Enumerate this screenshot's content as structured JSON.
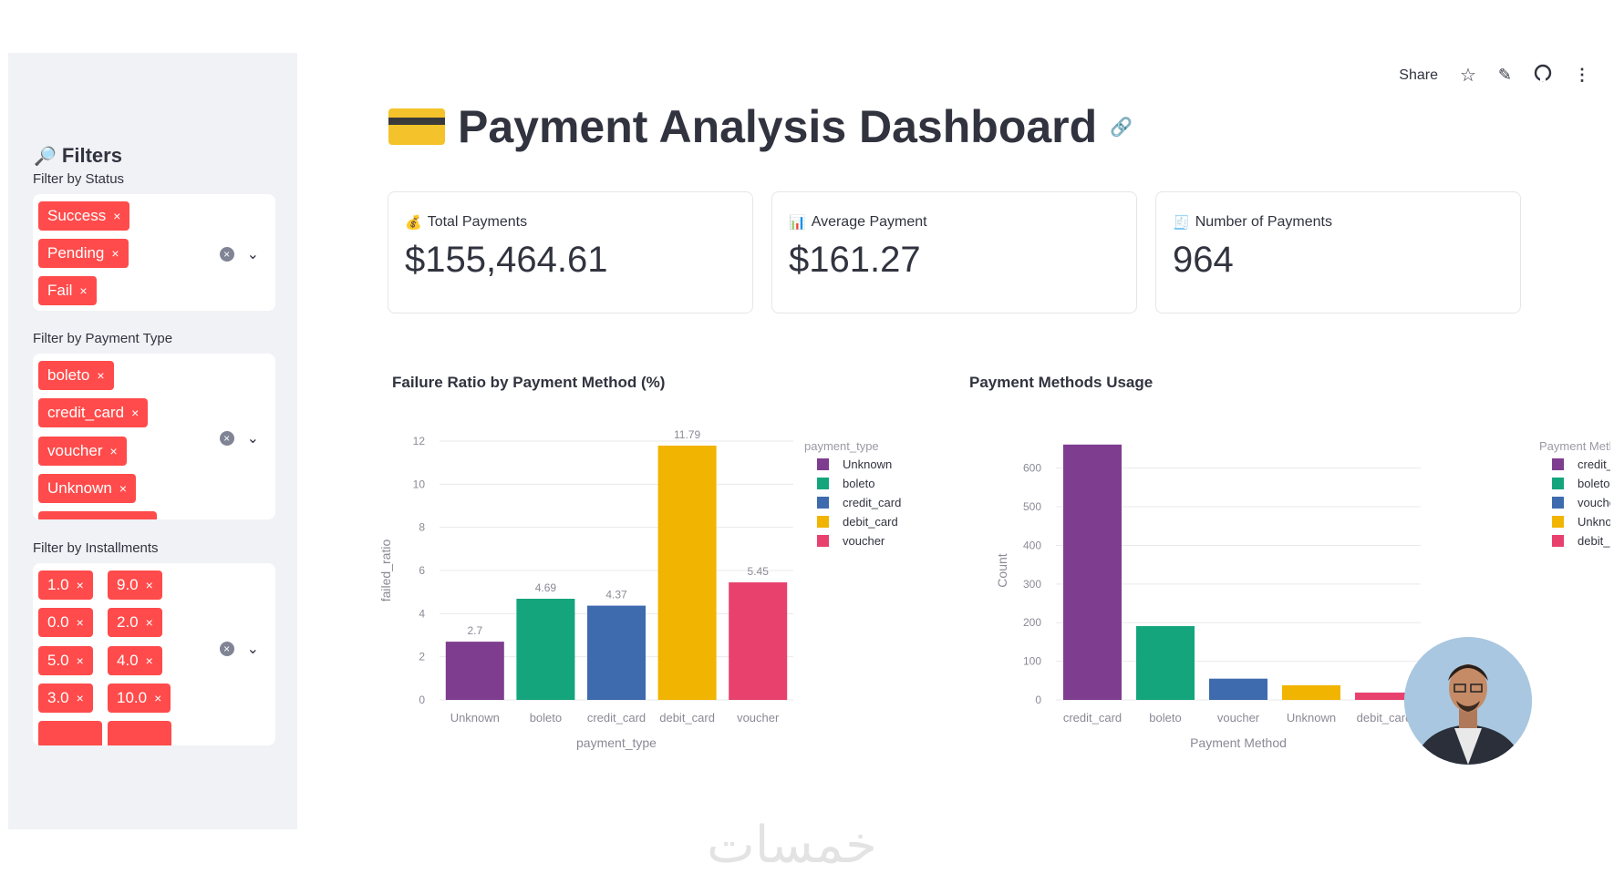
{
  "sidebar": {
    "title": "Filters",
    "status_label": "Filter by Status",
    "status_tags": [
      "Success",
      "Pending",
      "Fail"
    ],
    "payment_type_label": "Filter by Payment Type",
    "payment_type_tags": [
      "boleto",
      "credit_card",
      "voucher",
      "Unknown"
    ],
    "installments_label": "Filter by Installments",
    "installments_tags": [
      "1.0",
      "9.0",
      "0.0",
      "2.0",
      "5.0",
      "4.0",
      "3.0",
      "10.0"
    ],
    "remove_symbol": "×",
    "clear_symbol": "×",
    "dropdown_symbol": "⌄"
  },
  "toolbar": {
    "share": "Share"
  },
  "header": {
    "title": "Payment Analysis Dashboard"
  },
  "metrics": [
    {
      "label": "Total Payments",
      "value": "$155,464.61",
      "icon": "money-bag-icon"
    },
    {
      "label": "Average Payment",
      "value": "$161.27",
      "icon": "bar-chart-icon"
    },
    {
      "label": "Number of Payments",
      "value": "964",
      "icon": "receipt-icon"
    }
  ],
  "chart_data": [
    {
      "type": "bar",
      "title": "Failure Ratio by Payment Method (%)",
      "xlabel": "payment_type",
      "ylabel": "failed_ratio",
      "legend_title": "payment_type",
      "legend_position": "top-right",
      "categories": [
        "Unknown",
        "boleto",
        "credit_card",
        "debit_card",
        "voucher"
      ],
      "values": [
        2.7,
        4.69,
        4.37,
        11.79,
        5.45
      ],
      "value_labels": [
        "2.7",
        "4.69",
        "4.37",
        "11.79",
        "5.45"
      ],
      "colors": [
        "#7e3d8f",
        "#14a57c",
        "#3e6bad",
        "#f1b400",
        "#e8416e"
      ],
      "ylim": [
        0,
        12
      ],
      "yticks": [
        0,
        2,
        4,
        6,
        8,
        10,
        12
      ],
      "grid": true
    },
    {
      "type": "bar",
      "title": "Payment Methods Usage",
      "xlabel": "Payment Method",
      "ylabel": "Count",
      "legend_title": "Payment Method",
      "legend_position": "top-right",
      "categories": [
        "credit_card",
        "boleto",
        "voucher",
        "Unknown",
        "debit_card"
      ],
      "values": [
        661,
        191,
        55,
        38,
        19
      ],
      "colors": [
        "#7e3d8f",
        "#14a57c",
        "#3e6bad",
        "#f1b400",
        "#e8416e"
      ],
      "ylim": [
        0,
        670
      ],
      "yticks": [
        0,
        100,
        200,
        300,
        400,
        500,
        600
      ],
      "grid": true
    }
  ],
  "watermark": "خمسات"
}
